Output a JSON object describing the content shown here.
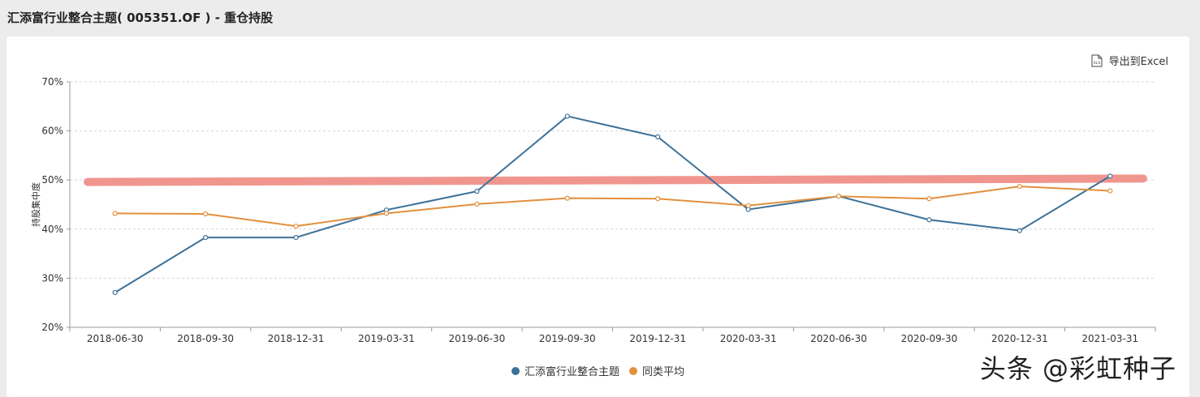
{
  "header": {
    "title": "汇添富行业整合主题( 005351.OF ) - 重仓持股"
  },
  "toolbar": {
    "export_label": "导出到Excel",
    "export_icon": "xls-file-icon"
  },
  "watermark": "头条 @彩虹种子",
  "colors": {
    "series1": "#3c7198",
    "series2": "#e3903d",
    "highlight": "#ef8b83"
  },
  "chart_data": {
    "type": "line",
    "title": "",
    "xlabel": "",
    "ylabel": "持股集中度",
    "ylim": [
      20,
      70
    ],
    "yticks": [
      20,
      30,
      40,
      50,
      60,
      70
    ],
    "ytick_labels": [
      "20%",
      "30%",
      "40%",
      "50%",
      "60%",
      "70%"
    ],
    "grid": true,
    "legend": "bottom-center",
    "categories": [
      "2018-06-30",
      "2018-09-30",
      "2018-12-31",
      "2019-03-31",
      "2019-06-30",
      "2019-09-30",
      "2019-12-31",
      "2020-03-31",
      "2020-06-30",
      "2020-09-30",
      "2020-12-31",
      "2021-03-31"
    ],
    "series": [
      {
        "name": "汇添富行业整合主题",
        "values": [
          27.1,
          38.3,
          38.3,
          43.9,
          47.7,
          63.0,
          58.8,
          44.0,
          46.7,
          41.9,
          39.7,
          50.8
        ]
      },
      {
        "name": "同类平均",
        "values": [
          43.2,
          43.1,
          40.6,
          43.2,
          45.1,
          46.3,
          46.2,
          44.8,
          46.7,
          46.2,
          48.7,
          47.8
        ]
      }
    ],
    "annotations": [
      {
        "type": "highlight-band",
        "from_value": 49.6,
        "to_value": 50.3
      }
    ]
  }
}
